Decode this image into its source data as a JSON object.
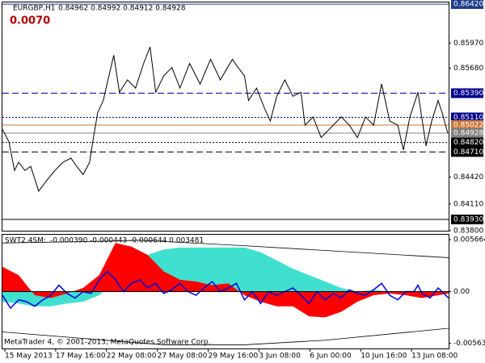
{
  "chart_data": [
    {
      "type": "price",
      "title": "EURGBP,H1",
      "subtitle": "0.84962 0.84992 0.84912 0.84928",
      "annotation": "0.0070",
      "color": "#000000",
      "xlim": [
        0,
        553
      ],
      "ylim": [
        0.838,
        0.8643
      ],
      "yticks": [
        {
          "value": 0.8597,
          "label": "0.85970"
        },
        {
          "value": 0.8568,
          "label": "0.85680"
        },
        {
          "value": 0.8442,
          "label": "0.84420"
        },
        {
          "value": 0.8411,
          "label": "0.84110"
        },
        {
          "value": 0.838,
          "label": "0.83800"
        }
      ],
      "levels": [
        {
          "value": 0.8642,
          "label": "0.86420",
          "style": "solid",
          "color": "#1e3c8c"
        },
        {
          "value": 0.8539,
          "label": "0.85390",
          "style": "dashed",
          "color": "#00008b"
        },
        {
          "value": 0.8511,
          "label": "0.85110",
          "style": "dotted",
          "color": "#00008b"
        },
        {
          "value": 0.85022,
          "label": "0.85022",
          "style": "solid",
          "color": "#c8783c"
        },
        {
          "value": 0.84928,
          "label": "0.84928",
          "style": "solid",
          "color": "#808080"
        },
        {
          "value": 0.8482,
          "label": "0.84820",
          "style": "dotted",
          "color": "#000000"
        },
        {
          "value": 0.8471,
          "label": "0.84710",
          "style": "dashed",
          "color": "#000000"
        },
        {
          "value": 0.8393,
          "label": "0.83930",
          "style": "solid",
          "color": "#000000"
        }
      ],
      "x": [
        0,
        8,
        15,
        20,
        28,
        35,
        45,
        55,
        65,
        75,
        85,
        92,
        100,
        108,
        112,
        118,
        125,
        132,
        138,
        145,
        155,
        165,
        175,
        183,
        190,
        200,
        210,
        220,
        232,
        245,
        258,
        270,
        285,
        292,
        300,
        305,
        315,
        325,
        332,
        340,
        350,
        360,
        370,
        375,
        385,
        395,
        405,
        420,
        430,
        440,
        450,
        460,
        470,
        480,
        490,
        497,
        505,
        515,
        525,
        532,
        540,
        545,
        552
      ],
      "values": [
        0.84972,
        0.8483,
        0.84496,
        0.84591,
        0.84496,
        0.84544,
        0.84258,
        0.84382,
        0.84496,
        0.84591,
        0.84639,
        0.84544,
        0.84449,
        0.84591,
        0.8483,
        0.85163,
        0.85306,
        0.85591,
        0.8583,
        0.85401,
        0.85544,
        0.85449,
        0.85734,
        0.85925,
        0.85401,
        0.85591,
        0.85687,
        0.85449,
        0.85734,
        0.85496,
        0.85782,
        0.85544,
        0.85782,
        0.85687,
        0.85591,
        0.85306,
        0.85449,
        0.85211,
        0.85068,
        0.85354,
        0.85544,
        0.85354,
        0.85401,
        0.8502,
        0.85116,
        0.84877,
        0.84972,
        0.85116,
        0.8502,
        0.84877,
        0.85116,
        0.8502,
        0.85496,
        0.85068,
        0.8502,
        0.84734,
        0.85116,
        0.85401,
        0.84782,
        0.85068,
        0.85306,
        0.85163,
        0.84925
      ]
    },
    {
      "type": "indicator",
      "title": "SWT2.4SM:",
      "subtitle": "-0.000390 -0.000443 -0.000644 0.003481",
      "footer": "MetaTrader 4, © 2001-2013, MetaQuotes Software Corp.",
      "xlim": [
        0,
        553
      ],
      "ylim": [
        -0.0062,
        0.0062
      ],
      "yticks": [
        0.005664,
        {
          "value": 0,
          "label": "0.00"
        },
        -0.005637
      ],
      "xticks": [
        {
          "value": 3,
          "label": "15 May 2013"
        },
        {
          "value": 66,
          "label": "17 May 16:00"
        },
        {
          "value": 129,
          "label": "22 May 08:00"
        },
        {
          "value": 192,
          "label": "27 May 08:00"
        },
        {
          "value": 255,
          "label": "29 May 16:00"
        },
        {
          "value": 318,
          "label": "3 Jun 08:00"
        },
        {
          "value": 381,
          "label": "6 Jun 00:00"
        },
        {
          "value": 444,
          "label": "10 Jun 16:00"
        },
        {
          "value": 507,
          "label": "13 Jun 08:00"
        }
      ],
      "series": [
        {
          "style": "area",
          "color": "#40e0d0",
          "x": [
            0,
            20,
            40,
            60,
            80,
            100,
            120,
            140,
            160,
            180,
            200,
            220,
            240,
            260,
            280,
            300,
            320,
            340,
            360,
            380,
            400,
            420,
            440,
            460,
            480,
            500,
            520,
            540,
            553
          ],
          "values": [
            -0.0011,
            -0.0013,
            -0.0016,
            -0.0016,
            -0.0013,
            -0.0011,
            -0.0004,
            0.0013,
            0.0031,
            0.004,
            0.0046,
            0.0048,
            0.0048,
            0.0048,
            0.0048,
            0.0048,
            0.0043,
            0.0034,
            0.0025,
            0.0018,
            0.0011,
            0.0004,
            0,
            0.0002,
            0,
            0,
            0,
            0,
            0
          ]
        },
        {
          "style": "area",
          "color": "#ff0000",
          "x": [
            0,
            20,
            40,
            60,
            80,
            100,
            120,
            140,
            160,
            180,
            200,
            220,
            240,
            260,
            280,
            300,
            320,
            340,
            360,
            380,
            400,
            420,
            440,
            460,
            480,
            500,
            520,
            540,
            553
          ],
          "values": [
            0.0027,
            0.0018,
            -0.0004,
            -0.0007,
            -0.0002,
            0.0004,
            0.0018,
            0.0053,
            0.0049,
            0.004,
            0.0022,
            0.0013,
            0.0011,
            0.0007,
            0.0009,
            -0.0004,
            -0.0011,
            -0.0016,
            -0.0016,
            -0.0027,
            -0.0028,
            -0.0022,
            -0.0011,
            -0.0004,
            -0.0002,
            -0.0004,
            -0.0007,
            -0.0004,
            -0.0002
          ]
        },
        {
          "style": "line",
          "color": "#000000",
          "x": [
            0,
            130,
            170,
            300,
            553
          ],
          "values": [
            0.0053,
            0.0055,
            0.0056,
            0.005,
            0.0037
          ]
        },
        {
          "style": "line",
          "color": "#000000",
          "x": [
            0,
            100,
            200,
            300,
            400,
            553
          ],
          "values": [
            -0.0044,
            -0.0051,
            -0.0058,
            -0.0058,
            -0.0053,
            -0.004
          ]
        },
        {
          "style": "line",
          "color": "#0000dd",
          "x": [
            0,
            10,
            20,
            30,
            40,
            50,
            60,
            70,
            80,
            90,
            100,
            110,
            120,
            130,
            140,
            150,
            160,
            170,
            180,
            190,
            200,
            210,
            220,
            230,
            240,
            250,
            260,
            270,
            280,
            290,
            300,
            310,
            320,
            330,
            340,
            350,
            360,
            370,
            380,
            390,
            400,
            410,
            420,
            430,
            440,
            450,
            460,
            470,
            480,
            490,
            500,
            510,
            515,
            520,
            530,
            540,
            553
          ],
          "values": [
            -0.0004,
            -0.0018,
            -0.0009,
            -0.0011,
            -0.0016,
            -0.0009,
            -0.0004,
            0.0007,
            -0.0002,
            -0.0007,
            0,
            -0.0002,
            0.0013,
            0.0022,
            0.0013,
            0,
            0.0009,
            0.0013,
            0.0004,
            0.0009,
            -0.0002,
            0.0002,
            0.0009,
            0,
            -0.0004,
            0.0004,
            0.0011,
            0,
            0.0004,
            0.0009,
            -0.0009,
            0,
            -0.0013,
            0,
            -0.0004,
            0,
            0.0004,
            -0.0004,
            -0.0013,
            0,
            -0.0009,
            -0.0002,
            -0.0007,
            0.0002,
            -0.0002,
            -0.0004,
            0.0002,
            0.0009,
            -0.0004,
            -0.0009,
            0,
            0,
            0.0007,
            -0.0002,
            -0.0007,
            0.0004,
            -0.0007
          ]
        }
      ]
    }
  ]
}
